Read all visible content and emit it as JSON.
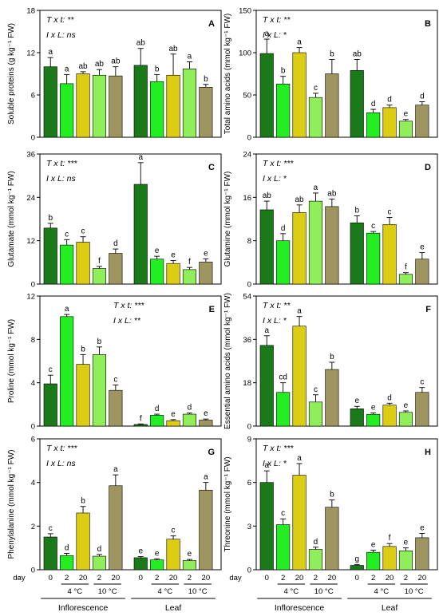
{
  "colors": {
    "day0": "#1a7a1a",
    "4C_day2": "#22ee22",
    "4C_day20": "#dccc14",
    "10C_day2": "#90ee5a",
    "10C_day20": "#9f9560"
  },
  "x_axis": {
    "day_label": "day",
    "day_ticks": [
      "0",
      "2",
      "20",
      "2",
      "20"
    ],
    "temp_labels": [
      "4 °C",
      "10 °C"
    ],
    "groups": [
      "Inflorescence",
      "Leaf"
    ]
  },
  "chart_data": [
    {
      "type": "bar",
      "panel_label": "A",
      "ylabel": "Soluble proteins (g kg⁻¹ FW)",
      "ylim": [
        0,
        18
      ],
      "yticks": [
        "0",
        "6",
        "12",
        "18"
      ],
      "stats": [
        "T x t: **",
        "I x L: ns"
      ],
      "groups": [
        "Inflorescence",
        "Leaf"
      ],
      "values": [
        [
          10.0,
          7.6,
          9.0,
          8.8,
          8.7
        ],
        [
          10.2,
          7.9,
          8.8,
          9.7,
          7.1
        ]
      ],
      "errors": [
        [
          1.3,
          1.3,
          0.3,
          0.8,
          1.3
        ],
        [
          2.4,
          1.0,
          3.0,
          1.0,
          0.4
        ]
      ],
      "letters": [
        [
          "a",
          "a",
          "ab",
          "ab",
          "ab"
        ],
        [
          "ab",
          "b",
          "ab",
          "a",
          "b"
        ]
      ]
    },
    {
      "type": "bar",
      "panel_label": "B",
      "ylabel": "Total amino acids (mmol kg⁻¹ FW)",
      "ylim": [
        0,
        150
      ],
      "yticks": [
        "0",
        "50",
        "100",
        "150"
      ],
      "stats": [
        "T x t: **",
        "I x L: *"
      ],
      "groups": [
        "Inflorescence",
        "Leaf"
      ],
      "values": [
        [
          99,
          63,
          100,
          47,
          75
        ],
        [
          79,
          29,
          35,
          19,
          38
        ]
      ],
      "errors": [
        [
          17,
          9,
          6,
          5,
          17
        ],
        [
          13,
          4,
          3,
          2,
          4
        ]
      ],
      "letters": [
        [
          "a",
          "b",
          "a",
          "c",
          "b"
        ],
        [
          "ab",
          "d",
          "d",
          "e",
          "d"
        ]
      ]
    },
    {
      "type": "bar",
      "panel_label": "C",
      "ylabel": "Glutamate (mmol kg⁻¹ FW)",
      "ylim": [
        0,
        36
      ],
      "yticks": [
        "0",
        "12",
        "24",
        "36"
      ],
      "stats": [
        "T x t: ***",
        "I x L: ns"
      ],
      "groups": [
        "Inflorescence",
        "Leaf"
      ],
      "values": [
        [
          15.5,
          10.8,
          11.6,
          4.3,
          8.5
        ],
        [
          27.6,
          6.9,
          5.7,
          4.0,
          6.1
        ]
      ],
      "errors": [
        [
          1.3,
          1.5,
          1.5,
          0.6,
          1.2
        ],
        [
          6.0,
          0.8,
          0.8,
          0.6,
          0.9
        ]
      ],
      "letters": [
        [
          "b",
          "c",
          "c",
          "f",
          "d"
        ],
        [
          "a",
          "e",
          "e",
          "f",
          "e"
        ]
      ]
    },
    {
      "type": "bar",
      "panel_label": "D",
      "ylabel": "Glutamine (mmol kg⁻¹ FW)",
      "ylim": [
        0,
        24
      ],
      "yticks": [
        "0",
        "8",
        "16",
        "24"
      ],
      "stats": [
        "T x t: ***",
        "I x L: *"
      ],
      "groups": [
        "Inflorescence",
        "Leaf"
      ],
      "values": [
        [
          13.7,
          8.0,
          13.2,
          15.3,
          14.3
        ],
        [
          11.3,
          9.4,
          11.0,
          1.8,
          4.6
        ]
      ],
      "errors": [
        [
          1.6,
          1.3,
          1.4,
          1.5,
          1.4
        ],
        [
          1.3,
          0.3,
          1.3,
          0.3,
          1.2
        ]
      ],
      "letters": [
        [
          "ab",
          "d",
          "ab",
          "a",
          "ab"
        ],
        [
          "b",
          "c",
          "c",
          "f",
          "e"
        ]
      ]
    },
    {
      "type": "bar",
      "panel_label": "E",
      "ylabel": "Proline (mmol kg⁻¹ FW)",
      "ylim": [
        0,
        12
      ],
      "yticks": [
        "0",
        "4",
        "8",
        "12"
      ],
      "stats": [
        "T x t: ***",
        "I x L: **"
      ],
      "groups": [
        "Inflorescence",
        "Leaf"
      ],
      "values": [
        [
          3.9,
          10.1,
          5.7,
          6.6,
          3.3
        ],
        [
          0.15,
          1.0,
          0.5,
          1.1,
          0.55
        ]
      ],
      "errors": [
        [
          0.8,
          0.2,
          0.9,
          0.7,
          0.5
        ],
        [
          0.05,
          0.1,
          0.1,
          0.1,
          0.1
        ]
      ],
      "letters": [
        [
          "c",
          "a",
          "b",
          "b",
          "c"
        ],
        [
          "f",
          "d",
          "e",
          "d",
          "e"
        ]
      ]
    },
    {
      "type": "bar",
      "panel_label": "F",
      "ylabel": "Essential amino acids (mmol kg⁻¹ FW)",
      "ylim": [
        0,
        54
      ],
      "yticks": [
        "0",
        "18",
        "36",
        "54"
      ],
      "stats": [
        "T x t: **",
        "I x L: *"
      ],
      "groups": [
        "Inflorescence",
        "Leaf"
      ],
      "values": [
        [
          33.5,
          14.0,
          41.5,
          10.0,
          23.5
        ],
        [
          7.2,
          4.9,
          8.7,
          5.7,
          14.0
        ]
      ],
      "errors": [
        [
          4.0,
          4.0,
          4.0,
          3.0,
          3.0
        ],
        [
          1.0,
          0.6,
          0.8,
          0.6,
          2.0
        ]
      ],
      "letters": [
        [
          "a",
          "cd",
          "a",
          "c",
          "b"
        ],
        [
          "e",
          "e",
          "d",
          "e",
          "c"
        ]
      ]
    },
    {
      "type": "bar",
      "panel_label": "G",
      "ylabel": "Phenylalanine (mmol kg⁻¹ FW)",
      "ylim": [
        0,
        6
      ],
      "yticks": [
        "0",
        "2",
        "4",
        "6"
      ],
      "stats": [
        "T x t: ***",
        "I x L: ns"
      ],
      "groups": [
        "Inflorescence",
        "Leaf"
      ],
      "values": [
        [
          1.5,
          0.65,
          2.6,
          0.62,
          3.85
        ],
        [
          0.55,
          0.45,
          1.4,
          0.42,
          3.65
        ]
      ],
      "errors": [
        [
          0.15,
          0.1,
          0.3,
          0.08,
          0.5
        ],
        [
          0.05,
          0.05,
          0.15,
          0.05,
          0.35
        ]
      ],
      "letters": [
        [
          "c",
          "d",
          "b",
          "d",
          "a"
        ],
        [
          "e",
          "e",
          "c",
          "e",
          "a"
        ]
      ]
    },
    {
      "type": "bar",
      "panel_label": "H",
      "ylabel": "Threonine (mmol kg⁻¹ FW)",
      "ylim": [
        0,
        9
      ],
      "yticks": [
        "0",
        "3",
        "6",
        "9"
      ],
      "stats": [
        "T x t: ***",
        "I x L: *"
      ],
      "groups": [
        "Inflorescence",
        "Leaf"
      ],
      "values": [
        [
          6.0,
          3.1,
          6.5,
          1.4,
          4.3
        ],
        [
          0.3,
          1.2,
          1.6,
          1.3,
          2.2
        ]
      ],
      "errors": [
        [
          0.8,
          0.4,
          0.8,
          0.15,
          0.5
        ],
        [
          0.05,
          0.15,
          0.2,
          0.2,
          0.3
        ]
      ],
      "letters": [
        [
          "a",
          "c",
          "a",
          "d",
          "b"
        ],
        [
          "g",
          "e",
          "f",
          "e",
          "e"
        ]
      ]
    }
  ]
}
